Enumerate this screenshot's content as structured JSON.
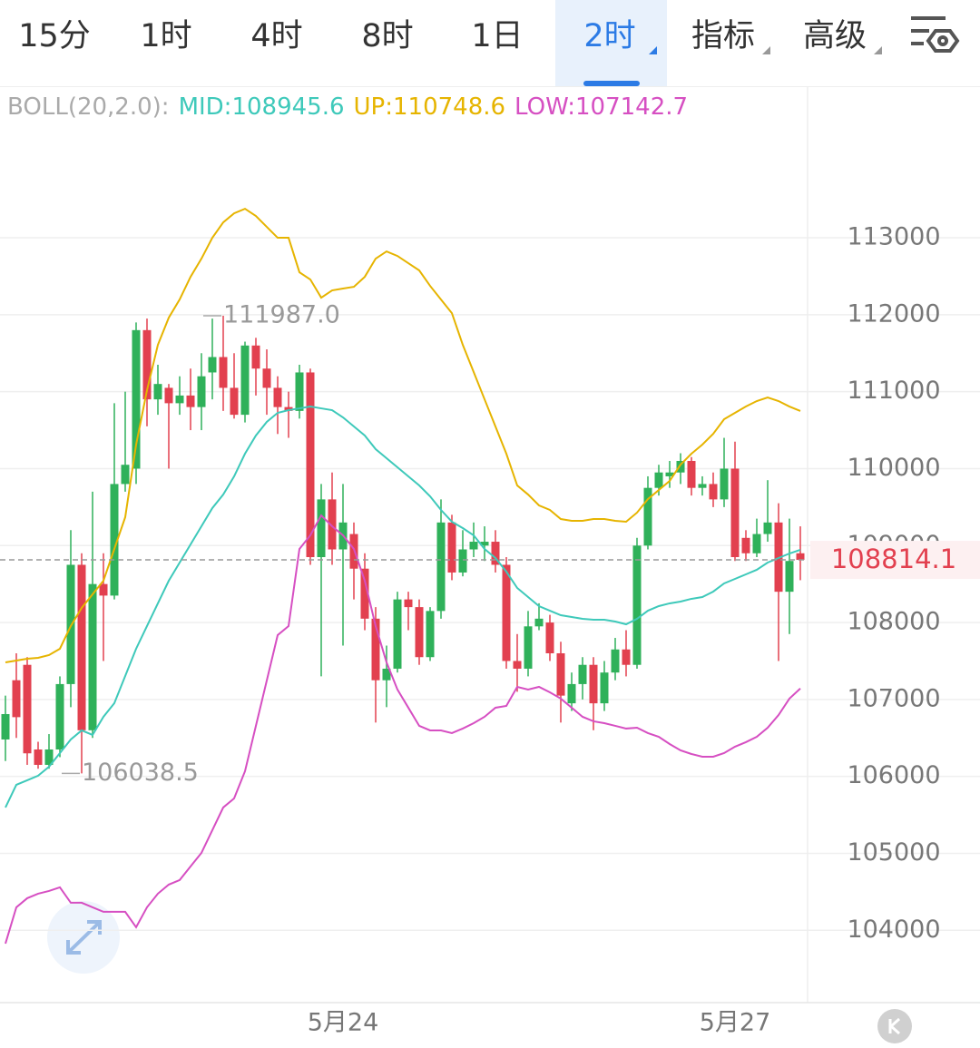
{
  "tabs": [
    {
      "label": "15分"
    },
    {
      "label": "1时"
    },
    {
      "label": "4时"
    },
    {
      "label": "8时"
    },
    {
      "label": "1日"
    },
    {
      "label": "2时",
      "active": true,
      "menu": true
    },
    {
      "label": "指标",
      "menu": true
    },
    {
      "label": "高级",
      "menu": true
    }
  ],
  "chart_data": {
    "type": "candlestick",
    "categories": [
      null,
      null,
      null,
      null,
      null,
      null,
      null,
      null,
      null,
      null,
      null,
      null,
      null,
      null,
      null,
      null,
      null,
      null,
      null,
      null,
      null,
      null,
      null,
      null,
      null,
      null,
      null,
      null,
      null,
      null,
      null,
      "5月24",
      null,
      null,
      null,
      null,
      null,
      null,
      null,
      null,
      null,
      null,
      null,
      null,
      null,
      null,
      null,
      null,
      null,
      null,
      null,
      null,
      null,
      null,
      null,
      null,
      null,
      null,
      null,
      null,
      null,
      null,
      null,
      null,
      null,
      null,
      null,
      "5月27",
      null,
      null,
      null,
      null,
      null,
      null
    ],
    "open": [
      106480,
      107250,
      107450,
      106350,
      106150,
      106350,
      107200,
      108750,
      106600,
      108500,
      108350,
      109800,
      110000,
      111800,
      110900,
      111050,
      110850,
      110950,
      110800,
      111250,
      111450,
      111050,
      110700,
      111600,
      111300,
      111050,
      110800,
      110750,
      111250,
      108850,
      109600,
      108950,
      109150,
      108700,
      108050,
      107250,
      107400,
      108300,
      108200,
      107550,
      108150,
      109300,
      108650,
      108950,
      109000,
      109050,
      108750,
      107500,
      107400,
      107950,
      108000,
      107600,
      106950,
      107200,
      107450,
      106950,
      107350,
      107650,
      107450,
      109000,
      109750,
      109900,
      109950,
      110100,
      109750,
      109800,
      109600,
      110000,
      109100,
      108900,
      109150,
      109300,
      108400,
      108900
    ],
    "high": [
      107050,
      107600,
      107550,
      106450,
      106550,
      107300,
      109200,
      108900,
      109700,
      108900,
      110850,
      111000,
      111900,
      111950,
      111350,
      111100,
      111200,
      111300,
      111500,
      111950,
      111987,
      111500,
      111650,
      111700,
      111550,
      111200,
      111000,
      111350,
      111300,
      109800,
      109950,
      109800,
      109300,
      108900,
      108200,
      107700,
      108400,
      108400,
      108300,
      108200,
      109600,
      109400,
      109200,
      109300,
      109250,
      109200,
      108850,
      107850,
      108150,
      108250,
      108100,
      107750,
      107350,
      107550,
      107550,
      107500,
      107800,
      107900,
      109100,
      109900,
      110050,
      110100,
      110200,
      110150,
      109900,
      109950,
      110400,
      110350,
      109200,
      109350,
      109850,
      109550,
      109350,
      109250
    ],
    "low": [
      106200,
      106500,
      106150,
      106100,
      106100,
      106250,
      106900,
      106038.5,
      106500,
      107500,
      108300,
      109700,
      109800,
      110550,
      110700,
      110000,
      110700,
      110500,
      110500,
      110900,
      110750,
      110650,
      110600,
      110950,
      110700,
      110450,
      110400,
      110650,
      108750,
      107300,
      108750,
      107700,
      108300,
      107900,
      106700,
      106900,
      107350,
      107900,
      107450,
      107500,
      108050,
      108550,
      108600,
      108850,
      108800,
      108650,
      107400,
      107100,
      107300,
      107900,
      107500,
      106700,
      106850,
      107000,
      106600,
      106850,
      107250,
      107300,
      107400,
      108950,
      109650,
      109750,
      109800,
      109650,
      109650,
      109500,
      109500,
      108800,
      108800,
      108850,
      109050,
      107500,
      107850,
      108550
    ],
    "close": [
      106810,
      106770,
      106300,
      106150,
      106350,
      107200,
      108750,
      106600,
      108500,
      108350,
      109800,
      110050,
      111800,
      110900,
      111100,
      110850,
      110950,
      110800,
      111200,
      111450,
      111050,
      110700,
      111600,
      111300,
      111050,
      110800,
      110750,
      111250,
      108850,
      109600,
      108950,
      109300,
      108700,
      108050,
      107250,
      107400,
      108300,
      108200,
      107550,
      108150,
      109300,
      108650,
      108950,
      109050,
      109050,
      108750,
      107500,
      107400,
      107950,
      108050,
      107600,
      107050,
      107200,
      107450,
      106950,
      107350,
      107650,
      107450,
      109000,
      109750,
      109950,
      109950,
      110100,
      109750,
      109800,
      109600,
      110000,
      108850,
      108900,
      109150,
      109300,
      108400,
      108800,
      108814.1
    ],
    "up_color": "#2fb15a",
    "down_color": "#e2404f",
    "ylim": [
      103060,
      114970
    ],
    "yticks": [
      104000,
      105000,
      106000,
      107000,
      108000,
      109000,
      110000,
      111000,
      112000,
      113000
    ],
    "grid": true,
    "indicator": {
      "label": "BOLL(20,2.0):",
      "series": [
        {
          "name": "MID:",
          "color": "#3ec9ba",
          "values": [
            105596,
            105891,
            105950,
            106009,
            106126,
            106303,
            106480,
            106598,
            106539,
            106775,
            106952,
            107305,
            107659,
            107954,
            108249,
            108543,
            108779,
            109015,
            109251,
            109487,
            109663,
            109899,
            110194,
            110430,
            110607,
            110725,
            110760,
            110783,
            110807,
            110783,
            110760,
            110666,
            110548,
            110430,
            110253,
            110135,
            110017,
            109899,
            109781,
            109640,
            109463,
            109310,
            109227,
            109133,
            108956,
            108838,
            108661,
            108449,
            108331,
            108213,
            108154,
            108095,
            108072,
            108048,
            108036,
            108036,
            108013,
            107977,
            108048,
            108154,
            108213,
            108249,
            108272,
            108308,
            108331,
            108402,
            108508,
            108567,
            108626,
            108685,
            108779,
            108838,
            108897,
            108945.6
          ]
        },
        {
          "name": "UP:",
          "color": "#e6b400",
          "values": [
            107482,
            107506,
            107529,
            107541,
            107577,
            107659,
            107954,
            108190,
            108367,
            108543,
            108956,
            109369,
            110312,
            111019,
            111609,
            111962,
            112198,
            112493,
            112729,
            113000,
            113200,
            113318,
            113377,
            113283,
            113141,
            113000,
            113000,
            112552,
            112458,
            112222,
            112316,
            112340,
            112363,
            112493,
            112729,
            112823,
            112764,
            112670,
            112576,
            112375,
            112198,
            112021,
            111609,
            111255,
            110901,
            110548,
            110194,
            109781,
            109663,
            109522,
            109463,
            109345,
            109322,
            109322,
            109345,
            109345,
            109322,
            109310,
            109428,
            109604,
            109722,
            109840,
            110052,
            110194,
            110312,
            110453,
            110642,
            110725,
            110807,
            110878,
            110925,
            110878,
            110807,
            110748.6
          ]
        },
        {
          "name": "LOW:",
          "color": "#d64fc2",
          "values": [
            103827,
            104299,
            104417,
            104476,
            104511,
            104558,
            104358,
            104358,
            104299,
            104240,
            104240,
            104240,
            104040,
            104299,
            104476,
            104594,
            104653,
            104830,
            105006,
            105301,
            105596,
            105714,
            106067,
            106657,
            107246,
            107836,
            107954,
            108956,
            109133,
            109392,
            109251,
            109133,
            108956,
            108543,
            107954,
            107482,
            107129,
            106893,
            106657,
            106598,
            106598,
            106563,
            106622,
            106692,
            106775,
            106893,
            106916,
            107164,
            107129,
            107164,
            107093,
            107011,
            106893,
            106775,
            106716,
            106692,
            106657,
            106622,
            106633,
            106563,
            106515,
            106421,
            106339,
            106291,
            106256,
            106256,
            106303,
            106386,
            106445,
            106515,
            106633,
            106798,
            107011,
            107142.7
          ]
        }
      ]
    },
    "annotations": [
      {
        "label": "111987.0",
        "value": 111987
      },
      {
        "label": "106038.5",
        "value": 106038.5
      }
    ],
    "last_price": 108814.1
  }
}
